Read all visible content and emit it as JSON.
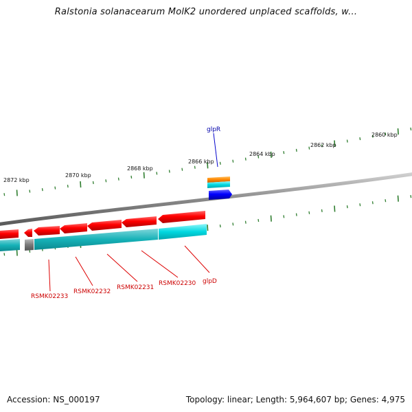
{
  "title": "Ralstonia solanacearum MolK2 unordered unplaced scaffolds, w...",
  "footer": {
    "accession": "Accession: NS_000197",
    "stats": "Topology: linear; Length: 5,964,607 bp; Genes: 4,975"
  },
  "ruler": {
    "labels": [
      "2872 kbp",
      "2870 kbp",
      "2868 kbp",
      "2866 kbp",
      "2864 kbp",
      "2862 kbp",
      "2860 kbp"
    ]
  },
  "genes": [
    {
      "name": "glpR",
      "strand": "+",
      "color": "#0000aa"
    },
    {
      "name": "glpD",
      "strand": "-",
      "color": "#cc0000"
    },
    {
      "name": "RSMK02230",
      "strand": "-",
      "color": "#cc0000"
    },
    {
      "name": "RSMK02231",
      "strand": "-",
      "color": "#cc0000"
    },
    {
      "name": "RSMK02232",
      "strand": "-",
      "color": "#cc0000"
    },
    {
      "name": "RSMK02233",
      "strand": "-",
      "color": "#cc0000"
    }
  ],
  "colors": {
    "backbone": "#8a8a8a",
    "tick": "#2e7d2e",
    "cds_forward": "#0000ff",
    "cds_reverse": "#ff0000",
    "feature_cyan": "#00d8e0",
    "feature_orange": "#ff8800",
    "feature_gray": "#7a7a7a"
  }
}
